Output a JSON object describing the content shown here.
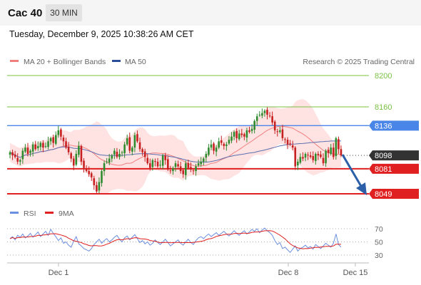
{
  "header": {
    "instrument": "Cac 40",
    "timeframe": "30 MIN"
  },
  "datetime": "Tuesday, December 9, 2025 10:38:26 AM CET",
  "legend": {
    "ma20_label": "MA 20 + Bollinger Bands",
    "ma50_label": "MA 50",
    "credit": "Research © 2025 Trading Central"
  },
  "rsi_legend": {
    "rsi_label": "RSI",
    "ma_label": "9MA"
  },
  "colors": {
    "ma20": "#f08080",
    "bollinger": "#ffd6d6",
    "ma50": "#5b6fae",
    "bull": "#2e8b2e",
    "bear": "#c62020",
    "green_level": "#7ac142",
    "blue_level": "#4a86e8",
    "red_level": "#e02020",
    "arrow": "#2b5fa8",
    "last_price_bg": "#333333",
    "rsi": "#6b8fe0",
    "rsi_ma": "#e02020"
  },
  "chart_data": {
    "type": "candlestick",
    "ylim": [
      8035,
      8210
    ],
    "x_ticks": [
      "Dec 1",
      "Dec 8",
      "Dec 15"
    ],
    "levels": [
      {
        "value": 8200,
        "label": "8200",
        "style": "green"
      },
      {
        "value": 8160,
        "label": "8160",
        "style": "green"
      },
      {
        "value": 8136,
        "label": "8136",
        "style": "blue"
      },
      {
        "value": 8098,
        "label": "8098",
        "style": "last"
      },
      {
        "value": 8081,
        "label": "8081",
        "style": "red"
      },
      {
        "value": 8049,
        "label": "8049",
        "style": "red"
      }
    ],
    "closes": [
      8102,
      8098,
      8096,
      8090,
      8092,
      8104,
      8108,
      8100,
      8104,
      8112,
      8106,
      8110,
      8114,
      8108,
      8110,
      8116,
      8120,
      8114,
      8124,
      8130,
      8122,
      8116,
      8108,
      8102,
      8094,
      8085,
      8100,
      8110,
      8090,
      8082,
      8078,
      8074,
      8070,
      8060,
      8052,
      8064,
      8078,
      8088,
      8090,
      8094,
      8098,
      8104,
      8096,
      8100,
      8102,
      8112,
      8120,
      8104,
      8108,
      8124,
      8116,
      8106,
      8102,
      8096,
      8088,
      8082,
      8092,
      8090,
      8084,
      8086,
      8098,
      8092,
      8080,
      8078,
      8082,
      8088,
      8084,
      8078,
      8074,
      8088,
      8082,
      8080,
      8078,
      8084,
      8088,
      8090,
      8094,
      8100,
      8108,
      8112,
      8104,
      8108,
      8116,
      8114,
      8110,
      8112,
      8118,
      8122,
      8128,
      8120,
      8126,
      8124,
      8122,
      8130,
      8128,
      8132,
      8142,
      8148,
      8150,
      8152,
      8155,
      8150,
      8148,
      8140,
      8130,
      8128,
      8130,
      8120,
      8118,
      8112,
      8112,
      8108,
      8084,
      8090,
      8096,
      8094,
      8100,
      8098,
      8096,
      8092,
      8100,
      8098,
      8096,
      8088,
      8104,
      8101,
      8108,
      8096,
      8120,
      8106,
      8098
    ],
    "rsi": {
      "levels": [
        70,
        50,
        30
      ],
      "ylim": [
        22,
        78
      ],
      "values": [
        55,
        58,
        53,
        60,
        57,
        62,
        56,
        59,
        63,
        57,
        61,
        65,
        58,
        62,
        66,
        60,
        69,
        63,
        58,
        52,
        56,
        48,
        50,
        45,
        42,
        51,
        58,
        47,
        44,
        40,
        38,
        36,
        40,
        46,
        50,
        54,
        48,
        52,
        55,
        50,
        53,
        57,
        60,
        54,
        50,
        56,
        59,
        53,
        57,
        61,
        55,
        49,
        52,
        47,
        50,
        45,
        48,
        53,
        49,
        46,
        50,
        54,
        49,
        44,
        47,
        50,
        53,
        48,
        45,
        50,
        54,
        49,
        46,
        52,
        56,
        58,
        55,
        59,
        62,
        58,
        61,
        64,
        60,
        63,
        66,
        62,
        59,
        63,
        67,
        63,
        60,
        64,
        67,
        62,
        65,
        69,
        66,
        70,
        64,
        68,
        71,
        67,
        64,
        60,
        52,
        46,
        49,
        40,
        42,
        38,
        34,
        39,
        44,
        36,
        40,
        42,
        45,
        41,
        43,
        39,
        46,
        43,
        40,
        44,
        48,
        45,
        42,
        48,
        62,
        46,
        42
      ]
    }
  }
}
